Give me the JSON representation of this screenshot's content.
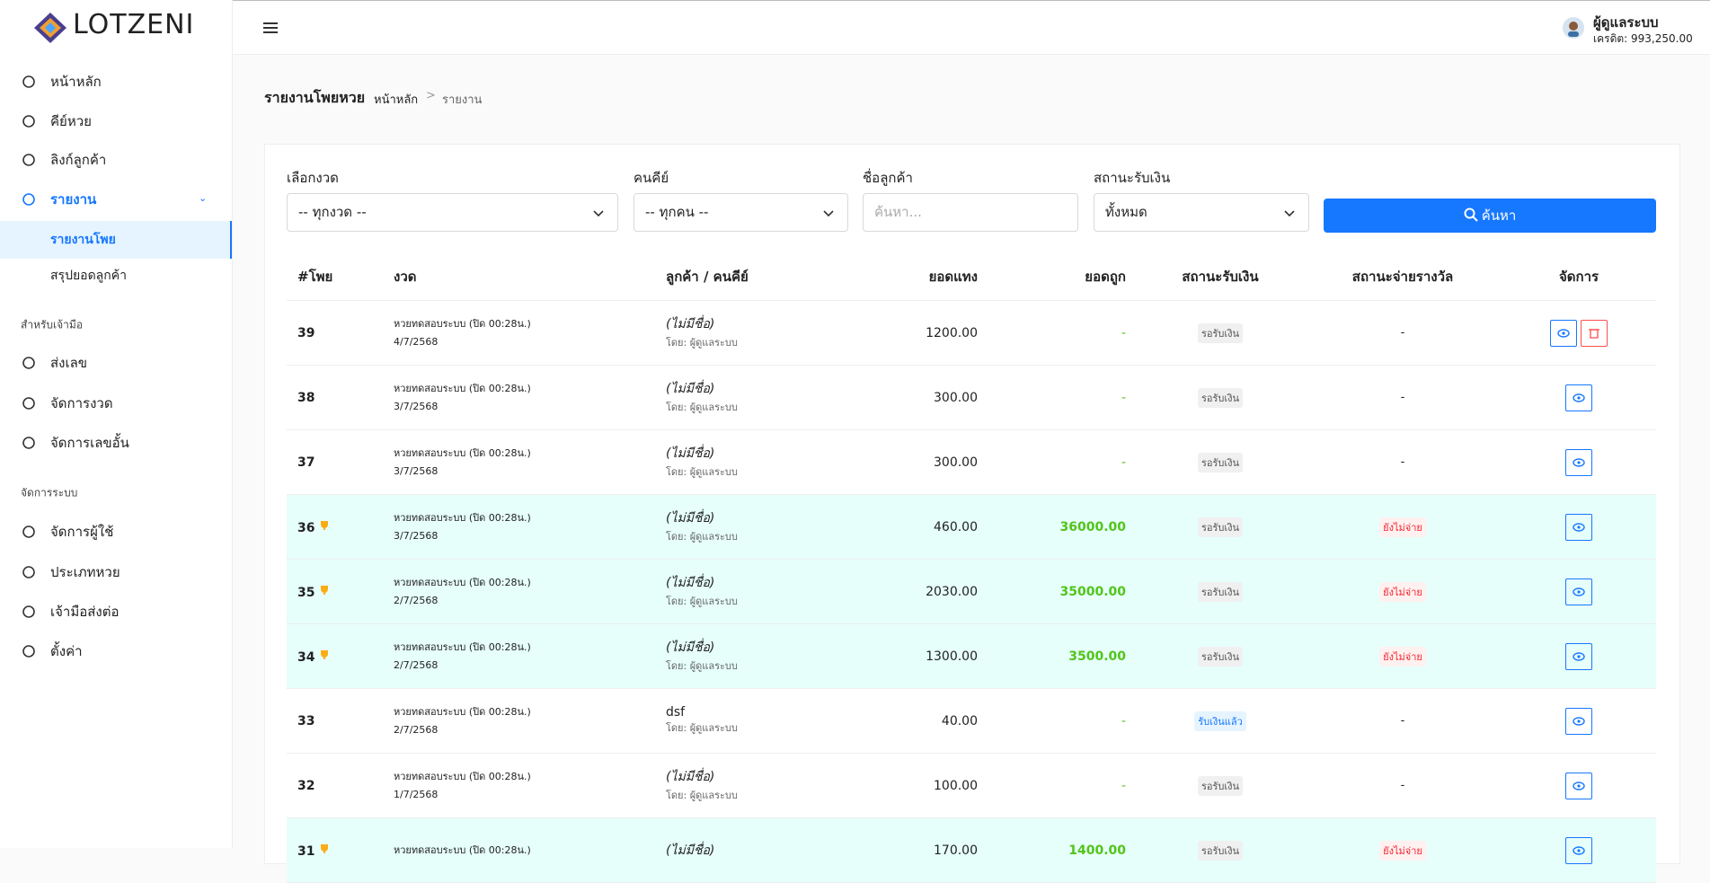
{
  "sidebar": {
    "brand": "LOTZENI",
    "main": [
      "หน้าหลัก",
      "คีย์หวย",
      "ลิงก์ลูกค้า",
      "รายงาน"
    ],
    "report_sub": [
      "รายงานโพย",
      "สรุปยอดลูกค้า"
    ],
    "dealer": {
      "heading": "สำหรับเจ้ามือ",
      "items": [
        "ส่งเลข",
        "จัดการงวด",
        "จัดการเลขอั้น"
      ]
    },
    "system": {
      "heading": "จัดการระบบ",
      "items": [
        "จัดการผู้ใช้",
        "ประเภทหวย",
        "เจ้ามือส่งต่อ",
        "ตั้งค่า"
      ]
    }
  },
  "header": {
    "user": "ผู้ดูแลระบบ",
    "credit": "เครดิต: 993,250.00"
  },
  "page": {
    "title": "รายงานโพยหวย",
    "breadcrumb": [
      "หน้าหลัก",
      "รายงาน"
    ]
  },
  "filters": {
    "fields": [
      {
        "label": "เลือกงวด",
        "value": "-- ทุกงวด --"
      },
      {
        "label": "คนคีย์",
        "value": "-- ทุกคน --"
      },
      {
        "label": "ชื่อลูกค้า",
        "placeholder": "ค้นหา..."
      },
      {
        "label": "สถานะรับเงิน",
        "value": "ทั้งหมด"
      }
    ],
    "button": "ค้นหา"
  },
  "table": {
    "headers": [
      "#โพย",
      "งวด",
      "ลูกค้า / คนคีย์",
      "ยอดแทง",
      "ยอดถูก",
      "สถานะรับเงิน",
      "สถานะจ่ายรางวัล",
      "จัดการ"
    ],
    "rows": [
      [
        "39",
        "หวยทดสอบระบบ (ปิด 00:28น.)",
        "4/7/2568",
        "(ไม่มีชื่อ)",
        "โดย: ผู้ดูแลระบบ",
        "1200.00",
        "-",
        "รอรับเงิน",
        "-"
      ],
      [
        "38",
        "หวยทดสอบระบบ (ปิด 00:28น.)",
        "3/7/2568",
        "(ไม่มีชื่อ)",
        "โดย: ผู้ดูแลระบบ",
        "300.00",
        "-",
        "รอรับเงิน",
        "-"
      ],
      [
        "37",
        "หวยทดสอบระบบ (ปิด 00:28น.)",
        "3/7/2568",
        "(ไม่มีชื่อ)",
        "โดย: ผู้ดูแลระบบ",
        "300.00",
        "-",
        "รอรับเงิน",
        "-"
      ],
      [
        "36",
        "หวยทดสอบระบบ (ปิด 00:28น.)",
        "3/7/2568",
        "(ไม่มีชื่อ)",
        "โดย: ผู้ดูแลระบบ",
        "460.00",
        "36000.00",
        "รอรับเงิน",
        "ยังไม่จ่าย"
      ],
      [
        "35",
        "หวยทดสอบระบบ (ปิด 00:28น.)",
        "2/7/2568",
        "(ไม่มีชื่อ)",
        "โดย: ผู้ดูแลระบบ",
        "2030.00",
        "35000.00",
        "รอรับเงิน",
        "ยังไม่จ่าย"
      ],
      [
        "34",
        "หวยทดสอบระบบ (ปิด 00:28น.)",
        "2/7/2568",
        "(ไม่มีชื่อ)",
        "โดย: ผู้ดูแลระบบ",
        "1300.00",
        "3500.00",
        "รอรับเงิน",
        "ยังไม่จ่าย"
      ],
      [
        "33",
        "หวยทดสอบระบบ (ปิด 00:28น.)",
        "2/7/2568",
        "dsf",
        "โดย: ผู้ดูแลระบบ",
        "40.00",
        "-",
        "รับเงินแล้ว",
        "-"
      ],
      [
        "32",
        "หวยทดสอบระบบ (ปิด 00:28น.)",
        "1/7/2568",
        "(ไม่มีชื่อ)",
        "โดย: ผู้ดูแลระบบ",
        "100.00",
        "-",
        "รอรับเงิน",
        "-"
      ],
      [
        "31",
        "หวยทดสอบระบบ (ปิด 00:28น.)",
        null,
        "(ไม่มีชื่อ)",
        null,
        "170.00",
        "1400.00",
        "รอรับเงิน",
        "ยังไม่จ่าย"
      ]
    ]
  }
}
